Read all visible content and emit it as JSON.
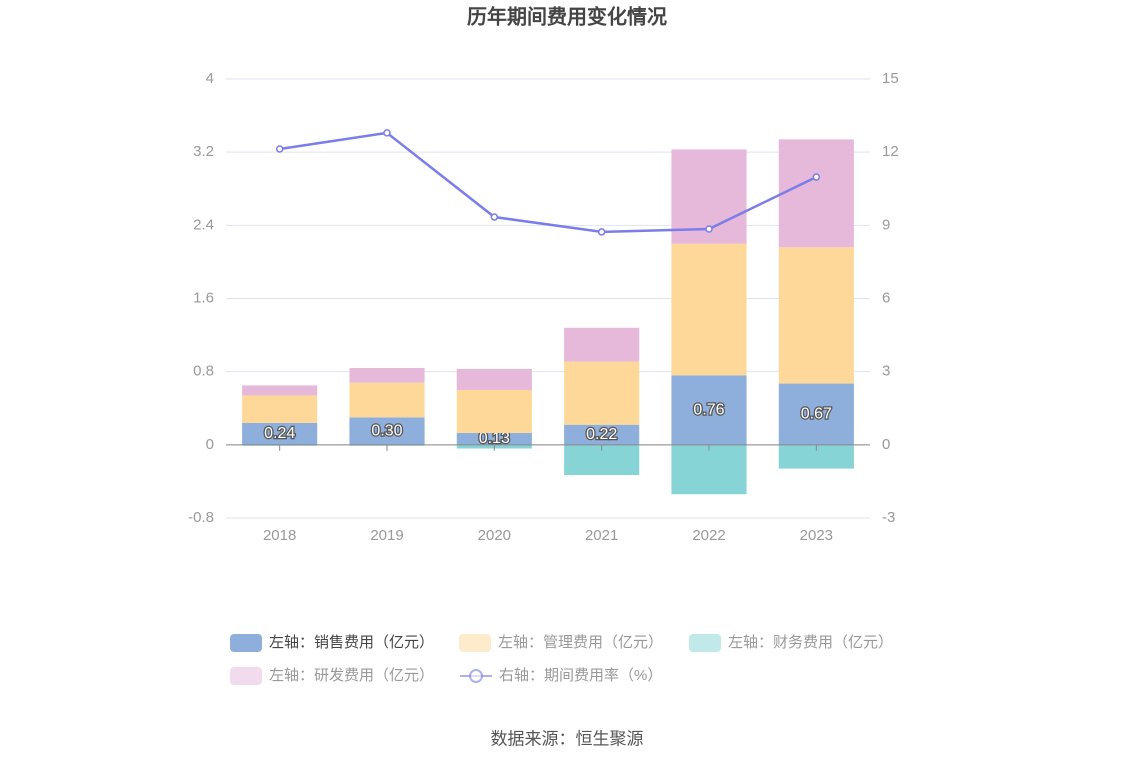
{
  "chart_data": {
    "type": "bar",
    "stacked": true,
    "title": "历年期间费用变化情况",
    "source": "数据来源：恒生聚源",
    "categories": [
      "2018",
      "2019",
      "2020",
      "2021",
      "2022",
      "2023"
    ],
    "series": [
      {
        "name": "左轴：销售费用（亿元）",
        "color": "#8eaedb",
        "values": [
          0.24,
          0.3,
          0.13,
          0.22,
          0.76,
          0.67
        ],
        "value_labels": [
          "0.24",
          "0.30",
          "0.13",
          "0.22",
          "0.76",
          "0.67"
        ]
      },
      {
        "name": "左轴：管理费用（亿元）",
        "color": "#fed898",
        "values": [
          0.3,
          0.38,
          0.47,
          0.69,
          1.44,
          1.49
        ]
      },
      {
        "name": "左轴：财务费用（亿元）",
        "color": "#86d4d6",
        "values": [
          -0.01,
          -0.01,
          -0.04,
          -0.33,
          -0.54,
          -0.26
        ]
      },
      {
        "name": "左轴：研发费用（亿元）",
        "color": "#e6b8da",
        "values": [
          0.11,
          0.16,
          0.23,
          0.37,
          1.03,
          1.18
        ]
      },
      {
        "name": "右轴：期间费用率（%）",
        "color": "#7b7de8",
        "type": "line",
        "axis": "y2",
        "values": [
          12.13,
          12.79,
          9.34,
          8.73,
          8.85,
          10.98
        ]
      }
    ],
    "ylim": [
      -0.8,
      4
    ],
    "yticks": [
      -0.8,
      0,
      0.8,
      1.6,
      2.4,
      3.2,
      4
    ],
    "y2lim": [
      -3,
      15
    ],
    "y2ticks": [
      -3,
      0,
      3,
      6,
      9,
      12,
      15
    ],
    "grid": true
  }
}
